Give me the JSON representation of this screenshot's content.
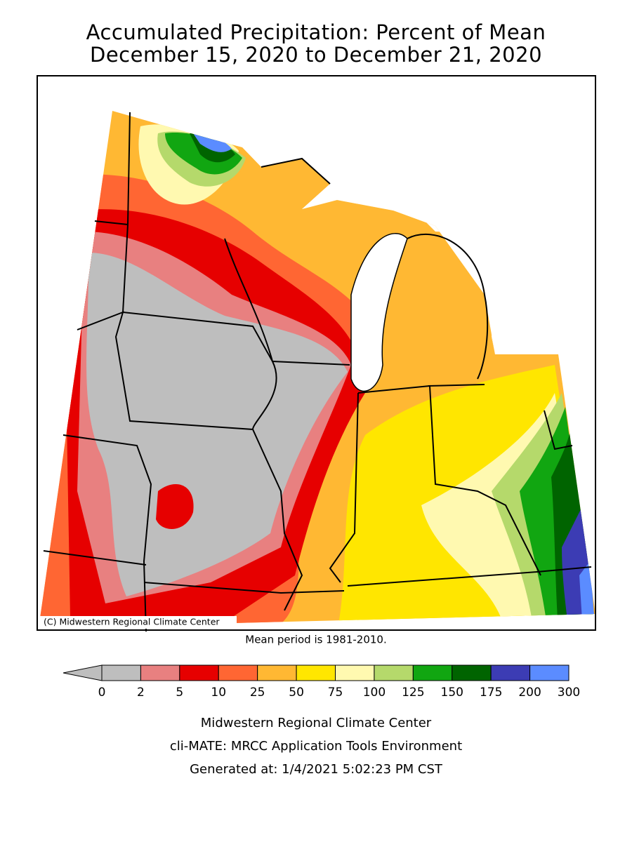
{
  "header": {
    "title_line1": "Accumulated Precipitation: Percent of Mean",
    "title_line2": "December 15, 2020 to December 21, 2020"
  },
  "map": {
    "copyright": "(C) Midwestern Regional Climate Center",
    "note": "Mean period is 1981-2010."
  },
  "legend": {
    "below_color": "#bebebe",
    "ticks": [
      0,
      2,
      5,
      10,
      25,
      50,
      75,
      100,
      125,
      150,
      175,
      200,
      300
    ],
    "colors": [
      "#bebebe",
      "#e88080",
      "#e60000",
      "#ff6633",
      "#ffb833",
      "#ffe600",
      "#fff9b0",
      "#b5d96b",
      "#11a611",
      "#006400",
      "#3c3cb4",
      "#5b8cff"
    ]
  },
  "footer": {
    "line1": "Midwestern Regional Climate Center",
    "line2": "cli-MATE: MRCC Application Tools Environment",
    "line3": "Generated at: 1/4/2021 5:02:23 PM CST"
  }
}
